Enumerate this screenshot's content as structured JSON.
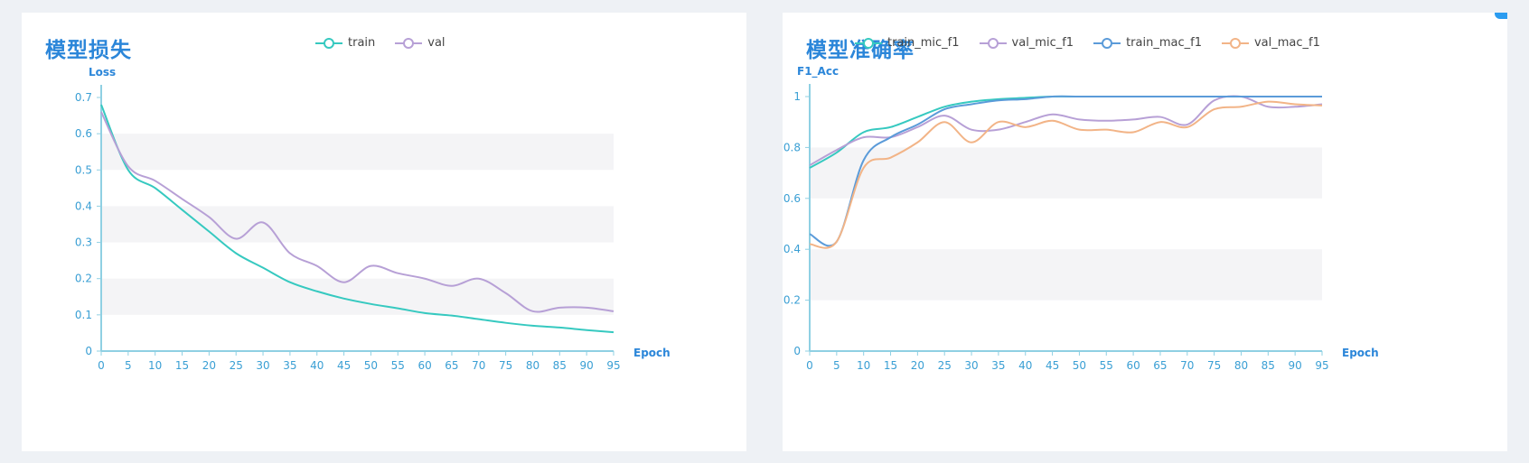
{
  "chart_data": [
    {
      "type": "line",
      "title": "模型损失",
      "xlabel": "Epoch",
      "ylabel": "Loss",
      "xlim": [
        0,
        95
      ],
      "ylim": [
        0,
        0.7
      ],
      "x_ticks": [
        0,
        5,
        10,
        15,
        20,
        25,
        30,
        35,
        40,
        45,
        50,
        55,
        60,
        65,
        70,
        75,
        80,
        85,
        90,
        95
      ],
      "y_ticks": [
        0,
        0.1,
        0.2,
        0.3,
        0.4,
        0.5,
        0.6,
        0.7
      ],
      "x": [
        0,
        5,
        10,
        15,
        20,
        25,
        30,
        35,
        40,
        45,
        50,
        55,
        60,
        65,
        70,
        75,
        80,
        85,
        90,
        95
      ],
      "series": [
        {
          "name": "train",
          "color": "#36c9c0",
          "values": [
            0.68,
            0.5,
            0.45,
            0.39,
            0.33,
            0.27,
            0.23,
            0.19,
            0.165,
            0.145,
            0.13,
            0.118,
            0.105,
            0.098,
            0.088,
            0.078,
            0.07,
            0.065,
            0.058,
            0.052
          ]
        },
        {
          "name": "val",
          "color": "#b7a0d6",
          "values": [
            0.66,
            0.51,
            0.47,
            0.42,
            0.37,
            0.31,
            0.355,
            0.27,
            0.235,
            0.19,
            0.235,
            0.215,
            0.2,
            0.18,
            0.2,
            0.16,
            0.11,
            0.12,
            0.12,
            0.11
          ]
        }
      ],
      "grid": "alternating horizontal bands",
      "legend": "top-center"
    },
    {
      "type": "line",
      "title": "模型准确率",
      "xlabel": "Epoch",
      "ylabel": "F1_Acc",
      "xlim": [
        0,
        95
      ],
      "ylim": [
        0,
        1
      ],
      "x_ticks": [
        0,
        5,
        10,
        15,
        20,
        25,
        30,
        35,
        40,
        45,
        50,
        55,
        60,
        65,
        70,
        75,
        80,
        85,
        90,
        95
      ],
      "y_ticks": [
        0,
        0.2,
        0.4,
        0.6,
        0.8,
        1
      ],
      "x": [
        0,
        5,
        10,
        15,
        20,
        25,
        30,
        35,
        40,
        45,
        50,
        55,
        60,
        65,
        70,
        75,
        80,
        85,
        90,
        95
      ],
      "series": [
        {
          "name": "train_mic_f1",
          "color": "#36c9c0",
          "values": [
            0.72,
            0.78,
            0.86,
            0.88,
            0.92,
            0.96,
            0.98,
            0.99,
            0.995,
            1,
            1,
            1,
            1,
            1,
            1,
            1,
            1,
            1,
            1,
            1
          ]
        },
        {
          "name": "val_mic_f1",
          "color": "#b7a0d6",
          "values": [
            0.73,
            0.79,
            0.84,
            0.84,
            0.88,
            0.925,
            0.87,
            0.87,
            0.9,
            0.93,
            0.91,
            0.905,
            0.91,
            0.92,
            0.89,
            0.985,
            1,
            0.96,
            0.96,
            0.97
          ]
        },
        {
          "name": "train_mac_f1",
          "color": "#5b9bd9",
          "values": [
            0.46,
            0.43,
            0.75,
            0.84,
            0.89,
            0.95,
            0.97,
            0.985,
            0.99,
            1,
            1,
            1,
            1,
            1,
            1,
            1,
            1,
            1,
            1,
            1
          ]
        },
        {
          "name": "val_mac_f1",
          "color": "#f2b487",
          "values": [
            0.42,
            0.43,
            0.72,
            0.76,
            0.82,
            0.9,
            0.82,
            0.9,
            0.88,
            0.905,
            0.87,
            0.87,
            0.86,
            0.9,
            0.88,
            0.95,
            0.96,
            0.98,
            0.97,
            0.965
          ]
        }
      ],
      "grid": "alternating horizontal bands",
      "legend": "top-center"
    }
  ]
}
